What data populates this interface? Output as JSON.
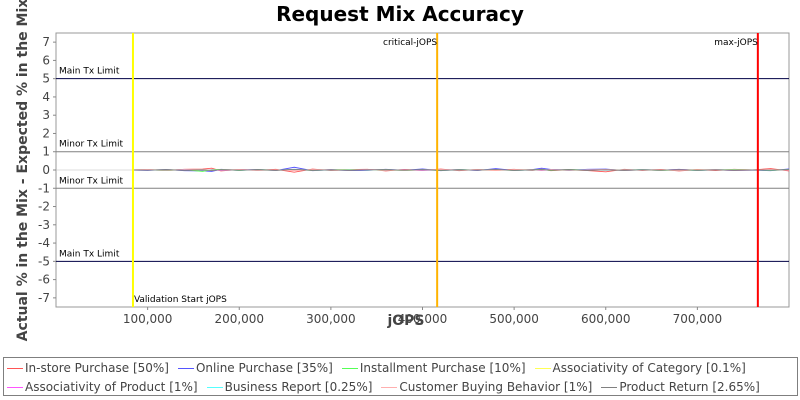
{
  "chart_data": {
    "type": "line",
    "title": "Request Mix Accuracy",
    "xlabel": "jOPS",
    "ylabel": "Actual % in the Mix - Expected % in the Mix",
    "xlim": [
      0,
      800000
    ],
    "ylim": [
      -7.5,
      7.5
    ],
    "xticks": [
      100000,
      200000,
      300000,
      400000,
      500000,
      600000,
      700000
    ],
    "xtick_labels": [
      "100,000",
      "200,000",
      "300,000",
      "400,000",
      "500,000",
      "600,000",
      "700,000"
    ],
    "yticks": [
      7,
      6,
      5,
      4,
      3,
      2,
      1,
      0,
      -1,
      -2,
      -3,
      -4,
      -5,
      -6,
      -7
    ],
    "ytick_labels": [
      "7",
      "6",
      "5",
      "4",
      "3",
      "2",
      "1",
      "0",
      "-1",
      "-2",
      "-3",
      "-4",
      "-5",
      "-6",
      "-7"
    ],
    "grid": false,
    "legend_position": "bottom",
    "limit_lines": [
      {
        "label": "Main Tx Limit",
        "y": 5,
        "color": "#000044"
      },
      {
        "label": "Minor Tx Limit",
        "y": 1,
        "color": "#808080"
      },
      {
        "label": "Minor Tx Limit",
        "y": -1,
        "color": "#808080"
      },
      {
        "label": "Main Tx Limit",
        "y": -5,
        "color": "#000044"
      }
    ],
    "markers": [
      {
        "label": "Validation Start jOPS",
        "x": 84000,
        "color": "#ffff00",
        "label_position": "bottom"
      },
      {
        "label": "critical-jOPS",
        "x": 416000,
        "color": "#ffb300",
        "label_position": "top"
      },
      {
        "label": "max-jOPS",
        "x": 766000,
        "color": "#ff0000",
        "label_position": "top"
      }
    ],
    "x": [
      84000,
      100000,
      120000,
      140000,
      160000,
      170000,
      180000,
      200000,
      220000,
      240000,
      260000,
      280000,
      300000,
      320000,
      340000,
      360000,
      380000,
      400000,
      420000,
      440000,
      460000,
      480000,
      500000,
      520000,
      530000,
      540000,
      560000,
      580000,
      600000,
      620000,
      640000,
      660000,
      680000,
      700000,
      720000,
      740000,
      760000,
      780000,
      800000
    ],
    "series": [
      {
        "name": "In-store Purchase [50%]",
        "color": "#ff5555",
        "values": [
          0,
          0.02,
          -0.03,
          0.04,
          0.05,
          0.1,
          -0.05,
          0.03,
          -0.02,
          0.04,
          -0.12,
          0.05,
          -0.03,
          0.02,
          0.04,
          -0.05,
          0.03,
          -0.02,
          0.05,
          -0.04,
          0.03,
          -0.02,
          0.04,
          -0.03,
          0.05,
          -0.04,
          0.02,
          -0.03,
          -0.1,
          0.04,
          -0.02,
          0.03,
          -0.05,
          0.02,
          -0.03,
          0.04,
          0,
          0.08,
          -0.05
        ]
      },
      {
        "name": "Online Purchase [35%]",
        "color": "#5555ff",
        "values": [
          0,
          -0.02,
          0.03,
          -0.04,
          -0.05,
          -0.08,
          0.04,
          -0.02,
          0.03,
          -0.03,
          0.15,
          -0.04,
          0.02,
          -0.03,
          -0.02,
          0.04,
          -0.02,
          0.06,
          -0.04,
          0.03,
          -0.03,
          0.08,
          -0.03,
          0.02,
          0.1,
          0.03,
          -0.02,
          0.04,
          0.05,
          -0.03,
          0.02,
          -0.02,
          0.04,
          -0.03,
          0.02,
          -0.02,
          0,
          -0.04,
          0.06
        ]
      },
      {
        "name": "Installment Purchase [10%]",
        "color": "#55ff55",
        "values": [
          0,
          0.01,
          -0.02,
          0.02,
          -0.08,
          0.02,
          0.03,
          -0.02,
          0.02,
          -0.01,
          0.03,
          -0.02,
          0.01,
          0.02,
          -0.01,
          0.02,
          -0.03,
          0.01,
          -0.02,
          0.02,
          -0.01,
          0.02,
          -0.02,
          0.01,
          0.02,
          -0.02,
          0.03,
          -0.01,
          0.02,
          -0.01,
          0.02,
          -0.02,
          0.01,
          -0.02,
          0.01,
          0.02,
          0,
          -0.02,
          0.02
        ]
      },
      {
        "name": "Associativity of Category [0.1%]",
        "color": "#ffff55",
        "values": [
          0,
          0,
          0.01,
          0,
          -0.01,
          0,
          0.01,
          0,
          0,
          -0.01,
          0.01,
          0,
          0,
          0.01,
          0,
          -0.01,
          0,
          0,
          0.01,
          0,
          0,
          -0.01,
          0,
          0.01,
          0,
          0,
          -0.01,
          0,
          0.01,
          0,
          0,
          -0.01,
          0,
          0.01,
          0,
          0,
          0,
          0.01,
          0
        ]
      },
      {
        "name": "Associativity of Product [1%]",
        "color": "#ff55ff",
        "values": [
          0,
          0.01,
          -0.01,
          0.02,
          -0.01,
          0.01,
          -0.02,
          0.01,
          0.01,
          -0.01,
          0.02,
          -0.01,
          0.01,
          -0.01,
          0.02,
          -0.01,
          0.01,
          -0.02,
          0.01,
          0.01,
          -0.01,
          0.02,
          -0.01,
          0.01,
          -0.02,
          0.01,
          0.01,
          -0.01,
          0.02,
          -0.01,
          0.01,
          -0.01,
          0.02,
          -0.01,
          0.01,
          -0.02,
          0,
          0.01,
          -0.01
        ]
      },
      {
        "name": "Business Report [0.25%]",
        "color": "#55ffff",
        "values": [
          0,
          0,
          -0.01,
          0.01,
          0,
          -0.01,
          0.01,
          0,
          -0.01,
          0,
          0.01,
          0,
          -0.01,
          0.01,
          0,
          0,
          -0.01,
          0.01,
          0,
          -0.01,
          0.01,
          0,
          0,
          -0.01,
          0.01,
          0,
          0,
          0.01,
          -0.01,
          0,
          0.01,
          0,
          -0.01,
          0,
          0.01,
          0,
          0,
          -0.01,
          0.01
        ]
      },
      {
        "name": "Customer Buying Behavior [1%]",
        "color": "#ffafaf",
        "values": [
          0,
          0.02,
          -0.01,
          0.01,
          0.03,
          -0.02,
          0.01,
          0.02,
          -0.02,
          0.01,
          -0.03,
          0.02,
          0.01,
          -0.01,
          0.02,
          0.01,
          -0.02,
          0.01,
          0.02,
          -0.01,
          0.01,
          -0.02,
          0.02,
          0.01,
          -0.01,
          0.02,
          -0.01,
          0.01,
          0.02,
          -0.02,
          0.01,
          0.01,
          -0.02,
          0.01,
          0.02,
          -0.01,
          0,
          0.02,
          -0.01
        ]
      },
      {
        "name": "Product Return [2.65%]",
        "color": "#808080",
        "values": [
          0,
          -0.01,
          0.02,
          -0.02,
          0.01,
          -0.03,
          0.02,
          -0.01,
          0.02,
          -0.02,
          0.04,
          -0.02,
          0.01,
          -0.02,
          0.01,
          0.02,
          -0.01,
          0.02,
          -0.02,
          0.01,
          -0.01,
          0.03,
          -0.02,
          0.01,
          0.02,
          -0.01,
          0.02,
          -0.02,
          0.01,
          -0.02,
          0.01,
          -0.01,
          0.02,
          -0.01,
          0.01,
          -0.02,
          0,
          -0.01,
          0.02
        ]
      }
    ]
  }
}
